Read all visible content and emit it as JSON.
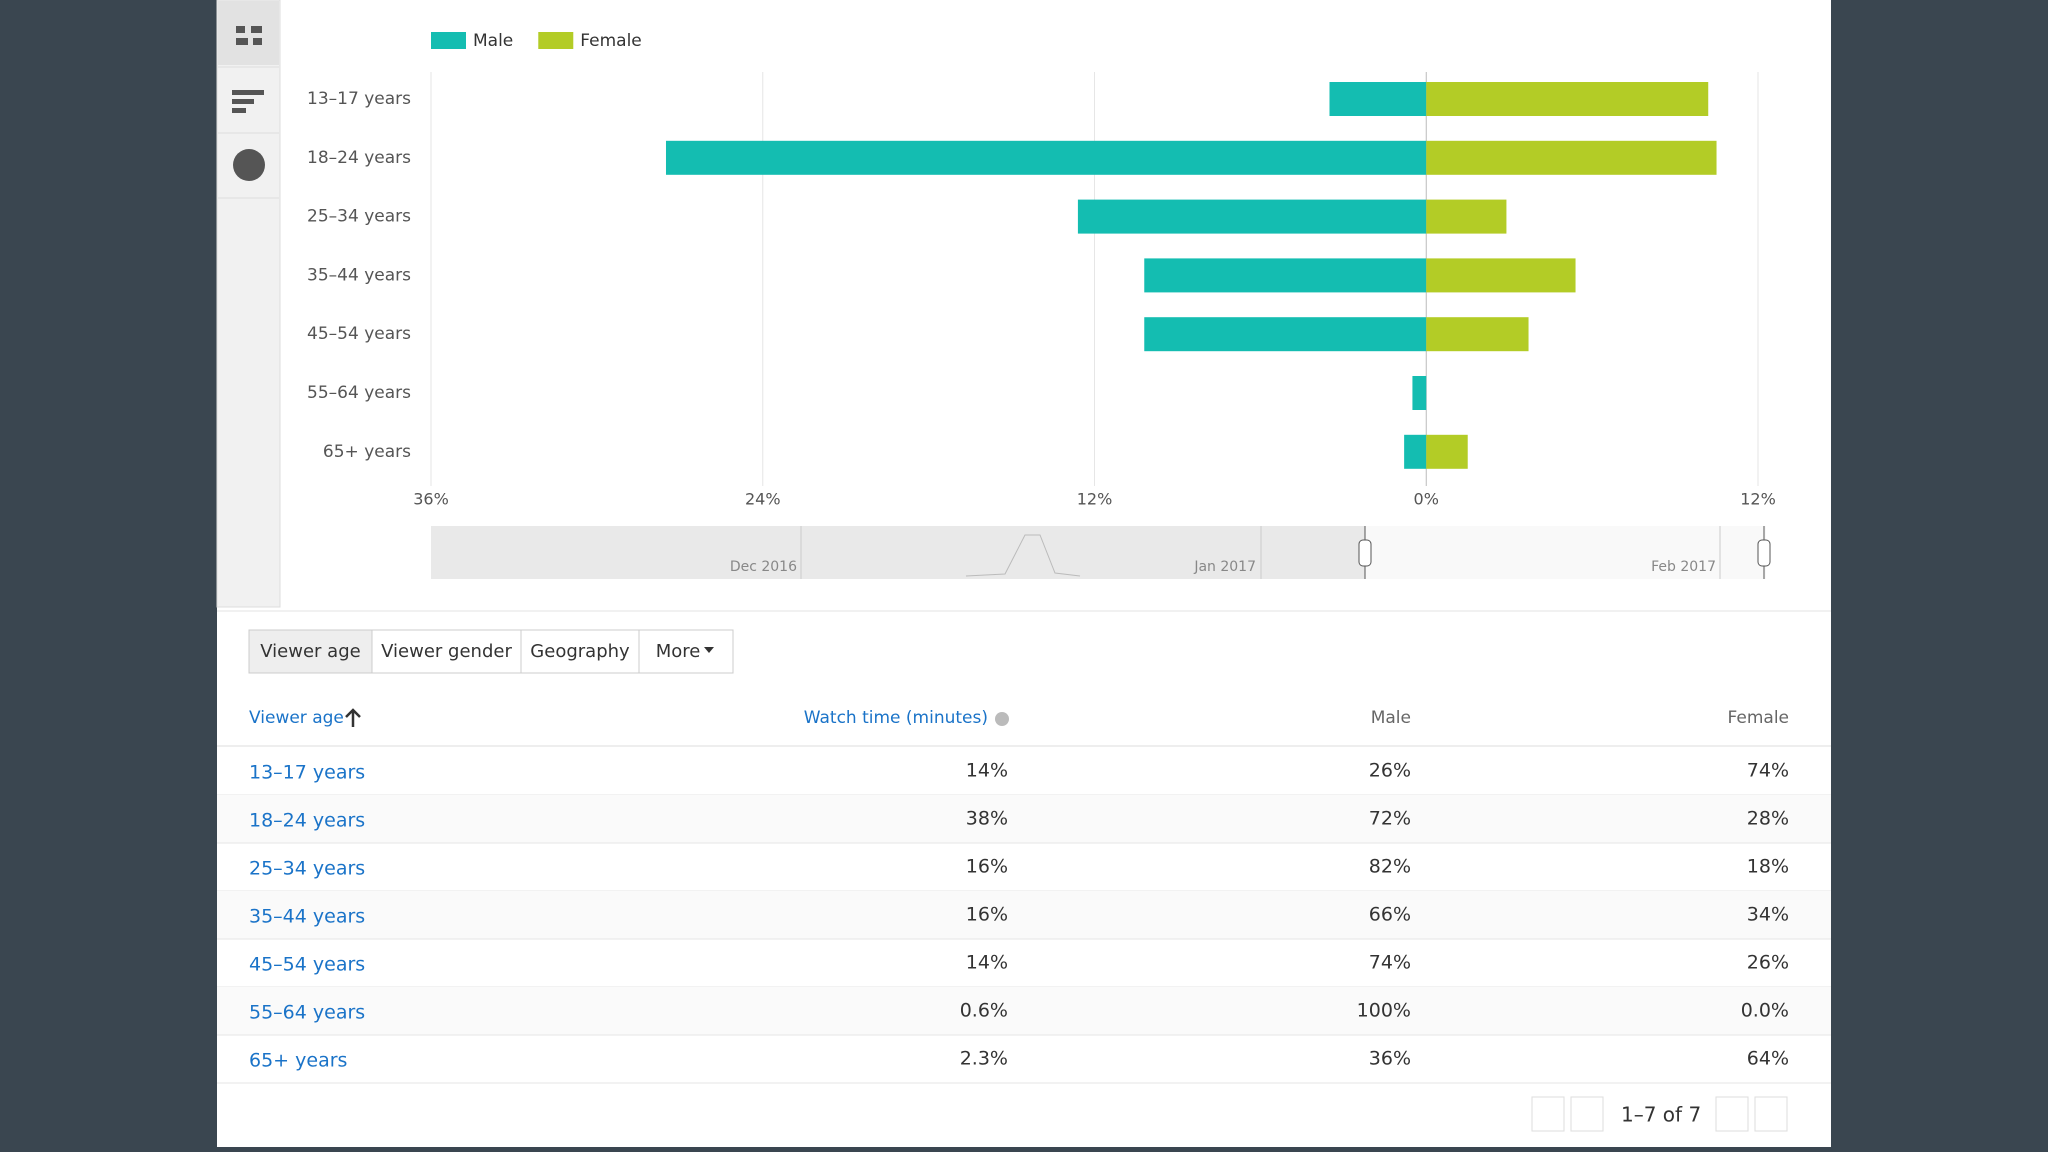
{
  "chart_data": {
    "type": "bar",
    "orientation": "horizontal",
    "categories": [
      "13–17 years",
      "18–24 years",
      "25–34 years",
      "35–44 years",
      "45–54 years",
      "55–64 years",
      "65+ years"
    ],
    "series": [
      {
        "name": "Male",
        "color": "#14bdb1",
        "values": [
          -3.5,
          -27.5,
          -12.6,
          -10.2,
          -10.2,
          -0.5,
          -0.8
        ]
      },
      {
        "name": "Female",
        "color": "#b3cc26",
        "values": [
          10.2,
          10.5,
          2.9,
          5.4,
          3.7,
          0,
          1.5
        ]
      }
    ],
    "xlim": [
      -36,
      12
    ],
    "xticks": [
      {
        "value": -36,
        "label": "36%"
      },
      {
        "value": -24,
        "label": "24%"
      },
      {
        "value": -12,
        "label": "12%"
      },
      {
        "value": 0,
        "label": "0%"
      },
      {
        "value": 12,
        "label": "12%"
      }
    ],
    "grid": true,
    "legend": "top-left"
  },
  "timeline": {
    "labels": [
      "Dec 2016",
      "Jan 2017",
      "Feb 2017"
    ]
  },
  "tabs": [
    "Viewer age",
    "Viewer gender",
    "Geography",
    "More"
  ],
  "table": {
    "headers": [
      "Viewer age",
      "Watch time (minutes)",
      "Male",
      "Female"
    ],
    "rows": [
      [
        "13–17 years",
        "14%",
        "26%",
        "74%"
      ],
      [
        "18–24 years",
        "38%",
        "72%",
        "28%"
      ],
      [
        "25–34 years",
        "16%",
        "82%",
        "18%"
      ],
      [
        "35–44 years",
        "16%",
        "66%",
        "34%"
      ],
      [
        "45–54 years",
        "14%",
        "74%",
        "26%"
      ],
      [
        "55–64 years",
        "0.6%",
        "100%",
        "0.0%"
      ],
      [
        "65+ years",
        "2.3%",
        "36%",
        "64%"
      ]
    ]
  },
  "pagination": "1–7 of 7"
}
